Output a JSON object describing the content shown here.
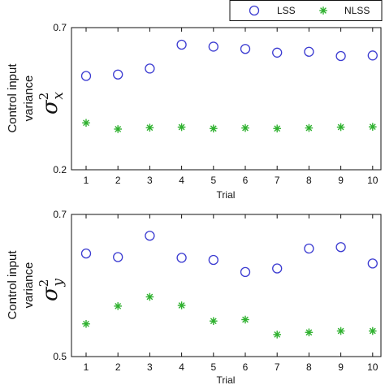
{
  "colors": {
    "lss": "#3b3bd1",
    "nlss": "#2fb12f"
  },
  "legend": {
    "items": [
      "LSS",
      "NLSS"
    ],
    "placement": "top-right"
  },
  "chart_data": [
    {
      "type": "scatter",
      "x": [
        1,
        2,
        3,
        4,
        5,
        6,
        7,
        8,
        9,
        10
      ],
      "xticks": [
        "1",
        "2",
        "3",
        "4",
        "5",
        "6",
        "7",
        "8",
        "9",
        "10"
      ],
      "xlabel": "Trial",
      "ylabel_lines": [
        "Control input",
        "variance"
      ],
      "ysymbol": {
        "base": "σ",
        "sup": "2",
        "sub": "x"
      },
      "ylim": [
        0.2,
        0.7
      ],
      "yticks": [
        "0.2",
        "0.7"
      ],
      "yticks_values": [
        0.2,
        0.7
      ],
      "series": [
        {
          "name": "LSS",
          "marker": "circle",
          "values": [
            0.53,
            0.535,
            0.556,
            0.64,
            0.633,
            0.625,
            0.612,
            0.615,
            0.6,
            0.602
          ]
        },
        {
          "name": "NLSS",
          "marker": "asterisk",
          "values": [
            0.365,
            0.343,
            0.348,
            0.35,
            0.345,
            0.347,
            0.345,
            0.347,
            0.35,
            0.351
          ]
        }
      ]
    },
    {
      "type": "scatter",
      "x": [
        1,
        2,
        3,
        4,
        5,
        6,
        7,
        8,
        9,
        10
      ],
      "xticks": [
        "1",
        "2",
        "3",
        "4",
        "5",
        "6",
        "7",
        "8",
        "9",
        "10"
      ],
      "xlabel": "Trial",
      "ylabel_lines": [
        "Control input",
        "variance"
      ],
      "ysymbol": {
        "base": "σ",
        "sup": "2",
        "sub": "y"
      },
      "ylim": [
        0.5,
        0.7
      ],
      "yticks": [
        "0.5",
        "0.7"
      ],
      "yticks_values": [
        0.5,
        0.7
      ],
      "series": [
        {
          "name": "LSS",
          "marker": "circle",
          "values": [
            0.645,
            0.64,
            0.67,
            0.639,
            0.636,
            0.619,
            0.624,
            0.652,
            0.654,
            0.631
          ]
        },
        {
          "name": "NLSS",
          "marker": "asterisk",
          "values": [
            0.546,
            0.571,
            0.584,
            0.572,
            0.55,
            0.552,
            0.531,
            0.534,
            0.536,
            0.536
          ]
        }
      ]
    }
  ]
}
